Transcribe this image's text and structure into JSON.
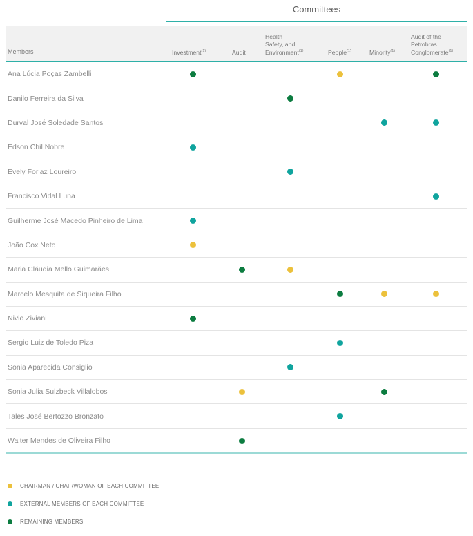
{
  "colors": {
    "accent-teal": "#2eb0a8",
    "light-teal": "#9cdad6",
    "header-bg": "#f1f1f1",
    "chair": "#ecc13c",
    "external": "#10a49e",
    "remaining": "#0c7c40"
  },
  "chart_data": {
    "type": "table",
    "title": "Committees",
    "row_header_label": "Members",
    "columns": [
      {
        "id": "investment",
        "lines": [
          "Investment"
        ],
        "sup": "(1)"
      },
      {
        "id": "audit",
        "lines": [
          "Audit"
        ],
        "sup": ""
      },
      {
        "id": "hse",
        "lines": [
          "Health",
          "Safety, and",
          "Environment"
        ],
        "sup": "(1)"
      },
      {
        "id": "people",
        "lines": [
          "People"
        ],
        "sup": "(1)"
      },
      {
        "id": "minority",
        "lines": [
          "Minority"
        ],
        "sup": "(1)"
      },
      {
        "id": "conglomerate",
        "lines": [
          "Audit of the",
          "Petrobras",
          "Conglomerate"
        ],
        "sup": "(1)"
      }
    ],
    "rows": [
      {
        "name": "Ana Lúcia Poças Zambelli",
        "memberships": {
          "investment": "remaining",
          "people": "chair",
          "conglomerate": "remaining"
        }
      },
      {
        "name": "Danilo Ferreira da Silva",
        "memberships": {
          "hse": "remaining"
        }
      },
      {
        "name": "Durval José Soledade Santos",
        "memberships": {
          "minority": "external",
          "conglomerate": "external"
        }
      },
      {
        "name": "Edson Chil Nobre",
        "memberships": {
          "investment": "external"
        }
      },
      {
        "name": "Evely Forjaz Loureiro",
        "memberships": {
          "hse": "external"
        }
      },
      {
        "name": "Francisco Vidal Luna",
        "memberships": {
          "conglomerate": "external"
        }
      },
      {
        "name": "Guilherme José Macedo Pinheiro de Lima",
        "memberships": {
          "investment": "external"
        }
      },
      {
        "name": "João Cox Neto",
        "memberships": {
          "investment": "chair"
        }
      },
      {
        "name": "Maria Cláudia Mello Guimarães",
        "memberships": {
          "audit": "remaining",
          "hse": "chair"
        }
      },
      {
        "name": "Marcelo Mesquita de Siqueira Filho",
        "memberships": {
          "people": "remaining",
          "minority": "chair",
          "conglomerate": "chair"
        }
      },
      {
        "name": "Nivio Ziviani",
        "memberships": {
          "investment": "remaining"
        }
      },
      {
        "name": "Sergio Luiz de Toledo Piza",
        "memberships": {
          "people": "external"
        }
      },
      {
        "name": "Sonia Aparecida Consiglio",
        "memberships": {
          "hse": "external"
        }
      },
      {
        "name": "Sonia Julia Sulzbeck Villalobos",
        "memberships": {
          "audit": "chair",
          "minority": "remaining"
        }
      },
      {
        "name": "Tales José Bertozzo Bronzato",
        "memberships": {
          "people": "external"
        }
      },
      {
        "name": "Walter Mendes de Oliveira Filho",
        "memberships": {
          "audit": "remaining"
        }
      }
    ],
    "legend": [
      {
        "role": "chair",
        "label": "CHAIRMAN / CHAIRWOMAN OF EACH COMMITTEE"
      },
      {
        "role": "external",
        "label": "EXTERNAL MEMBERS OF EACH COMMITTEE"
      },
      {
        "role": "remaining",
        "label": "REMAINING MEMBERS"
      }
    ]
  }
}
